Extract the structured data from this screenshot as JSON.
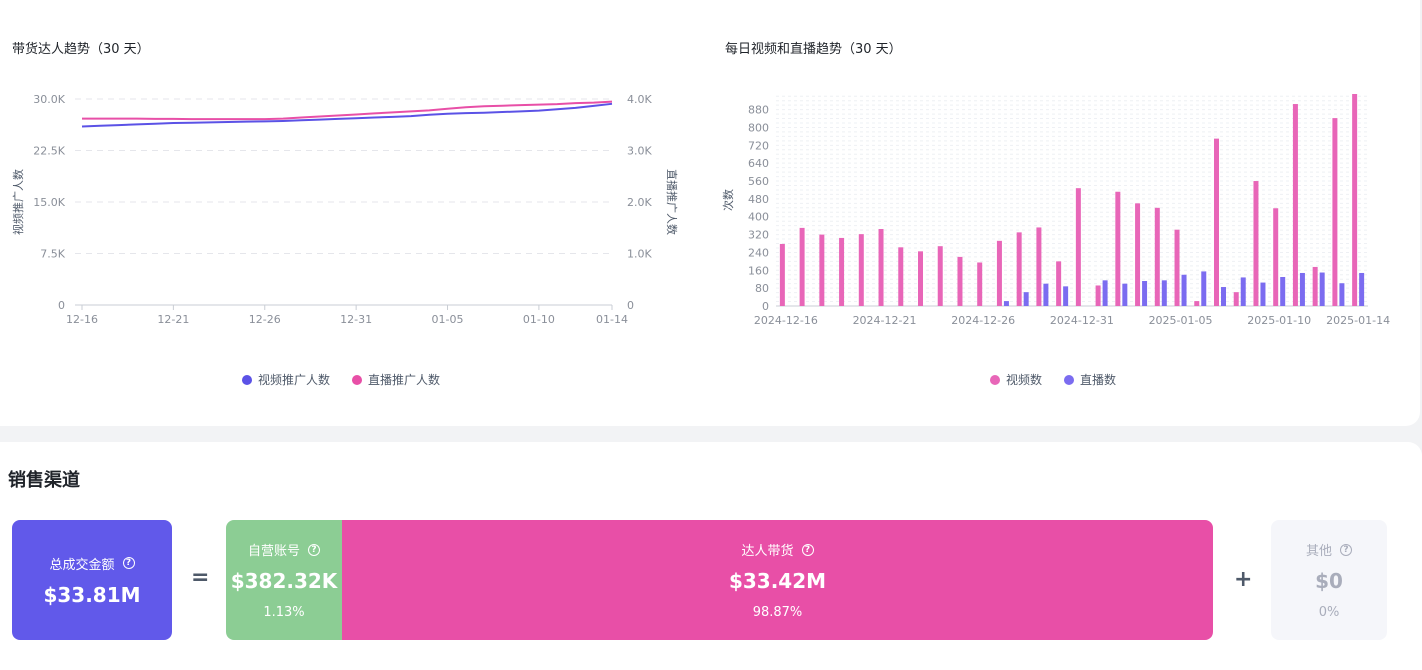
{
  "chart_data": [
    {
      "type": "line",
      "title": "带货达人趋势（30 天）",
      "ylabel": "视频推广人数",
      "y2label": "直播推广人数",
      "y_ticks": [
        "30.0K",
        "22.5K",
        "15.0K",
        "7.5K",
        "0"
      ],
      "y2_ticks": [
        "4.0K",
        "3.0K",
        "2.0K",
        "1.0K",
        "0"
      ],
      "ylim": [
        0,
        30000
      ],
      "y2lim": [
        0,
        4000
      ],
      "x_tick_labels": [
        "12-16",
        "12-21",
        "12-26",
        "12-31",
        "01-05",
        "01-10",
        "01-14"
      ],
      "x": [
        "12-16",
        "12-17",
        "12-18",
        "12-19",
        "12-20",
        "12-21",
        "12-22",
        "12-23",
        "12-24",
        "12-25",
        "12-26",
        "12-27",
        "12-28",
        "12-29",
        "12-30",
        "12-31",
        "01-01",
        "01-02",
        "01-03",
        "01-04",
        "01-05",
        "01-06",
        "01-07",
        "01-08",
        "01-09",
        "01-10",
        "01-11",
        "01-12",
        "01-13",
        "01-14"
      ],
      "series": [
        {
          "name": "视频推广人数",
          "axis": "left",
          "color": "#5b52e6",
          "values": [
            26000,
            26100,
            26200,
            26300,
            26400,
            26500,
            26550,
            26600,
            26650,
            26700,
            26750,
            26800,
            26900,
            27000,
            27100,
            27200,
            27300,
            27400,
            27500,
            27700,
            27850,
            27950,
            28000,
            28100,
            28200,
            28300,
            28500,
            28700,
            29000,
            29300
          ]
        },
        {
          "name": "直播推广人数",
          "axis": "right",
          "color": "#e84fa7",
          "values": [
            3620,
            3620,
            3620,
            3620,
            3615,
            3615,
            3610,
            3610,
            3610,
            3610,
            3610,
            3620,
            3640,
            3660,
            3680,
            3700,
            3720,
            3740,
            3760,
            3780,
            3810,
            3840,
            3860,
            3870,
            3880,
            3890,
            3900,
            3920,
            3930,
            3950
          ]
        }
      ],
      "legend_position": "bottom",
      "grid": true
    },
    {
      "type": "bar",
      "title": "每日视频和直播趋势（30 天）",
      "ylabel": "次数",
      "y_ticks": [
        "880",
        "800",
        "720",
        "640",
        "560",
        "480",
        "400",
        "320",
        "240",
        "160",
        "80",
        "0"
      ],
      "ylim": [
        0,
        950
      ],
      "x_tick_labels": [
        "2024-12-16",
        "2024-12-21",
        "2024-12-26",
        "2024-12-31",
        "2025-01-05",
        "2025-01-10",
        "2025-01-14"
      ],
      "categories": [
        "2024-12-16",
        "2024-12-17",
        "2024-12-18",
        "2024-12-19",
        "2024-12-20",
        "2024-12-21",
        "2024-12-22",
        "2024-12-23",
        "2024-12-24",
        "2024-12-25",
        "2024-12-26",
        "2024-12-27",
        "2024-12-28",
        "2024-12-29",
        "2024-12-30",
        "2024-12-31",
        "2025-01-01",
        "2025-01-02",
        "2025-01-03",
        "2025-01-04",
        "2025-01-05",
        "2025-01-06",
        "2025-01-07",
        "2025-01-08",
        "2025-01-09",
        "2025-01-10",
        "2025-01-11",
        "2025-01-12",
        "2025-01-13",
        "2025-01-14"
      ],
      "series": [
        {
          "name": "视频数",
          "color": "#e866b8",
          "values": [
            278,
            350,
            320,
            305,
            322,
            345,
            263,
            245,
            268,
            220,
            195,
            292,
            330,
            352,
            200,
            528,
            92,
            512,
            460,
            440,
            342,
            22,
            750,
            62,
            560,
            438,
            905,
            175,
            842,
            950
          ]
        },
        {
          "name": "直播数",
          "color": "#7b6cf0",
          "values": [
            0,
            0,
            0,
            0,
            0,
            0,
            0,
            0,
            0,
            0,
            0,
            22,
            62,
            100,
            88,
            0,
            115,
            100,
            112,
            115,
            140,
            155,
            85,
            128,
            105,
            130,
            148,
            150,
            102,
            148
          ]
        }
      ],
      "legend_position": "bottom",
      "grid": true
    }
  ],
  "sales": {
    "title": "销售渠道",
    "total": {
      "label": "总成交金额",
      "value": "$33.81M",
      "color": "#6159ea"
    },
    "equals": "=",
    "plus": "+",
    "self": {
      "label": "自营账号",
      "value": "$382.32K",
      "pct": "1.13%",
      "color": "#8ccd94"
    },
    "creator": {
      "label": "达人带货",
      "value": "$33.42M",
      "pct": "98.87%",
      "color": "#e84fa7"
    },
    "other": {
      "label": "其他",
      "value": "$0",
      "pct": "0%",
      "color": "#f5f6fa"
    }
  }
}
